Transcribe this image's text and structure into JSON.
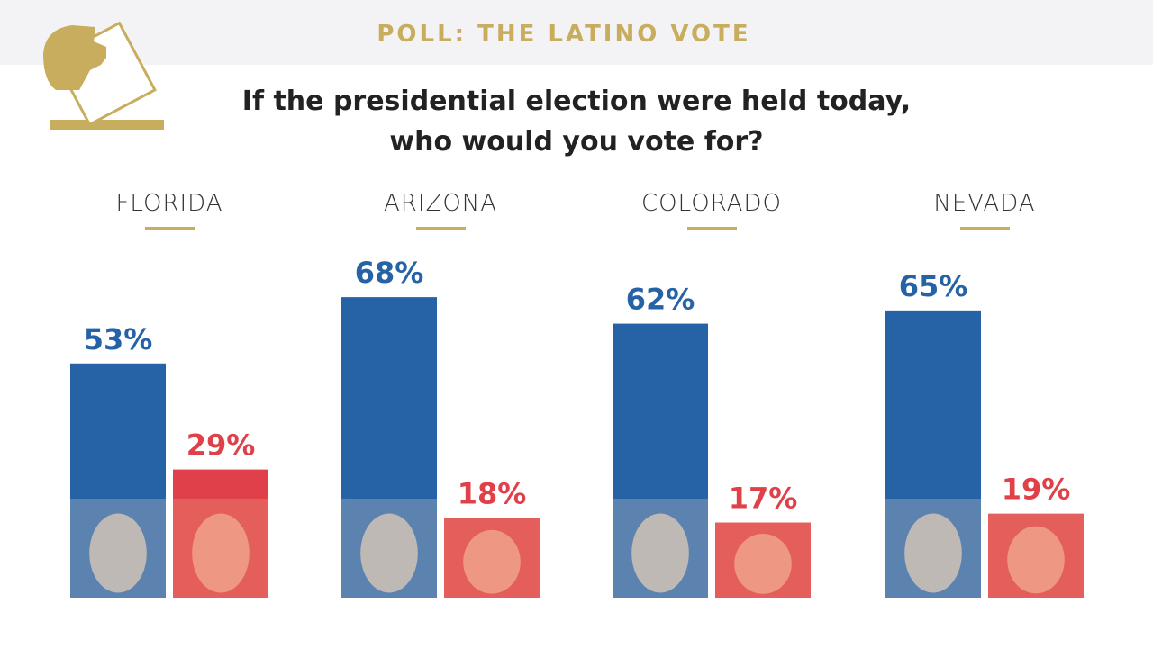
{
  "header": {
    "title": "POLL: THE LATINO VOTE"
  },
  "question": [
    "If the presidential election were held today,",
    "who would you vote for?"
  ],
  "chart_data": [
    {
      "type": "bar",
      "title": "FLORIDA",
      "categories": [
        null,
        null
      ],
      "values": [
        53,
        29
      ],
      "value_labels": [
        "53%",
        "29%"
      ],
      "colors": [
        "#2563a6",
        "#e0404a"
      ]
    },
    {
      "type": "bar",
      "title": "ARIZONA",
      "categories": [
        null,
        null
      ],
      "values": [
        68,
        18
      ],
      "value_labels": [
        "68%",
        "18%"
      ],
      "colors": [
        "#2563a6",
        "#e0404a"
      ]
    },
    {
      "type": "bar",
      "title": "COLORADO",
      "categories": [
        null,
        null
      ],
      "values": [
        62,
        17
      ],
      "value_labels": [
        "62%",
        "17%"
      ],
      "colors": [
        "#2563a6",
        "#e0404a"
      ]
    },
    {
      "type": "bar",
      "title": "NEVADA",
      "categories": [
        null,
        null
      ],
      "values": [
        65,
        19
      ],
      "value_labels": [
        "65%",
        "19%"
      ],
      "colors": [
        "#2563a6",
        "#e0404a"
      ]
    }
  ]
}
